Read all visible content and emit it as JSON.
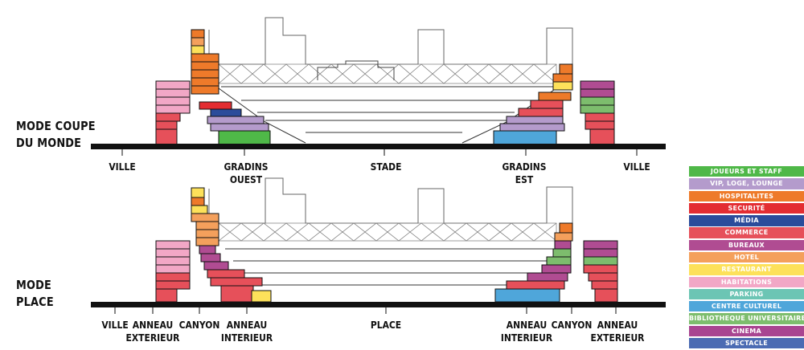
{
  "modes": {
    "top": {
      "title_line1": "MODE COUPE",
      "title_line2": "DU MONDE"
    },
    "bottom": {
      "title_line1": "MODE",
      "title_line2": "PLACE"
    }
  },
  "top_zones": {
    "ville_left": "VILLE",
    "gradins_ouest_1": "GRADINS",
    "gradins_ouest_2": "OUEST",
    "stade": "STADE",
    "gradins_est_1": "GRADINS",
    "gradins_est_2": "EST",
    "ville_right": "VILLE"
  },
  "bottom_zones": {
    "ville": "VILLE",
    "anneau_ext_1": "ANNEAU",
    "anneau_ext_2": "EXTERIEUR",
    "canyon_left": "CANYON",
    "anneau_int_1": "ANNEAU",
    "anneau_int_2": "INTERIEUR",
    "place": "PLACE",
    "anneau_int_r1": "ANNEAU",
    "anneau_int_r2": "INTERIEUR",
    "canyon_right": "CANYON",
    "anneau_ext_r1": "ANNEAU",
    "anneau_ext_r2": "EXTERIEUR"
  },
  "legend": [
    {
      "label": "JOUEURS ET STAFF",
      "color": "#4fb848"
    },
    {
      "label": "VIP, LOGE, LOUNGE",
      "color": "#b49bcc"
    },
    {
      "label": "HOSPITALITES",
      "color": "#ee7a2a"
    },
    {
      "label": "SECURITÉ",
      "color": "#e32d32"
    },
    {
      "label": "MÉDIA",
      "color": "#2b4c9b"
    },
    {
      "label": "COMMERCE",
      "color": "#e6505a"
    },
    {
      "label": "BUREAUX",
      "color": "#b04c92"
    },
    {
      "label": "HOTEL",
      "color": "#f4a05c"
    },
    {
      "label": "RESTAURANT",
      "color": "#fde15a"
    },
    {
      "label": "HABITATIONS",
      "color": "#f2a7c6"
    },
    {
      "label": "PARKING",
      "color": "#6cc5b4"
    },
    {
      "label": "CENTRE CULTUREL",
      "color": "#4fa6da"
    },
    {
      "label": "BIBLIOTHEQUE UNIVERSITAIRE",
      "color": "#7dbd6d"
    },
    {
      "label": "CINEMA",
      "color": "#a94591"
    },
    {
      "label": "SPECTACLE",
      "color": "#4b6bb3"
    }
  ]
}
